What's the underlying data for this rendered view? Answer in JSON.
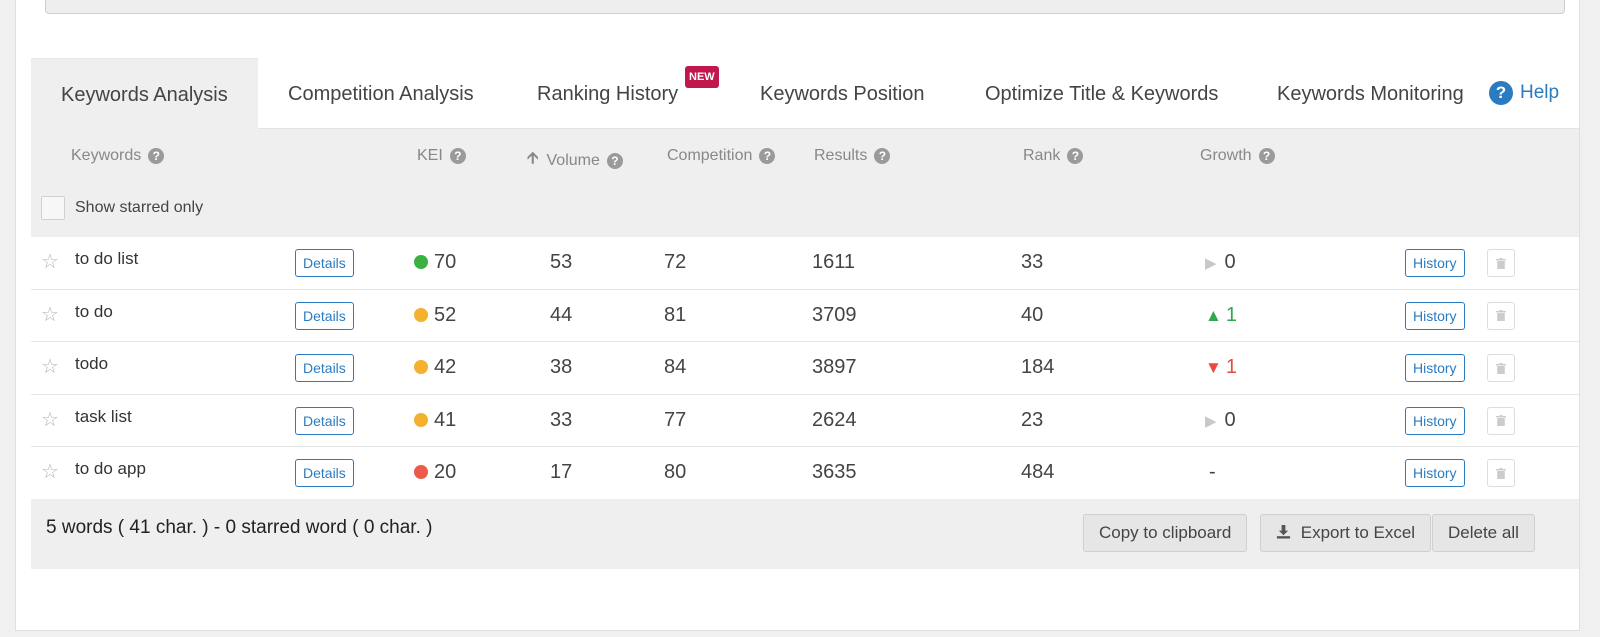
{
  "tabs": [
    {
      "label": "Keywords Analysis",
      "active": true
    },
    {
      "label": "Competition Analysis"
    },
    {
      "label": "Ranking History",
      "badge": "NEW"
    },
    {
      "label": "Keywords Position"
    },
    {
      "label": "Optimize Title & Keywords"
    },
    {
      "label": "Keywords Monitoring"
    }
  ],
  "help_label": "Help",
  "columns": {
    "keywords": "Keywords",
    "kei": "KEI",
    "volume": "Volume",
    "competition": "Competition",
    "results": "Results",
    "rank": "Rank",
    "growth": "Growth"
  },
  "show_starred_label": "Show starred only",
  "details_label": "Details",
  "history_label": "History",
  "rows": [
    {
      "keyword": "to do list",
      "kei": "70",
      "kei_color": "#3cb043",
      "volume": "53",
      "competition": "72",
      "results": "1611",
      "rank": "33",
      "growth": "0",
      "growth_dir": "flat"
    },
    {
      "keyword": "to do",
      "kei": "52",
      "kei_color": "#f5b02e",
      "volume": "44",
      "competition": "81",
      "results": "3709",
      "rank": "40",
      "growth": "1",
      "growth_dir": "up"
    },
    {
      "keyword": "todo",
      "kei": "42",
      "kei_color": "#f5b02e",
      "volume": "38",
      "competition": "84",
      "results": "3897",
      "rank": "184",
      "growth": "1",
      "growth_dir": "down"
    },
    {
      "keyword": "task list",
      "kei": "41",
      "kei_color": "#f5b02e",
      "volume": "33",
      "competition": "77",
      "results": "2624",
      "rank": "23",
      "growth": "0",
      "growth_dir": "flat"
    },
    {
      "keyword": "to do app",
      "kei": "20",
      "kei_color": "#ee5a4a",
      "volume": "17",
      "competition": "80",
      "results": "3635",
      "rank": "484",
      "growth": "-",
      "growth_dir": "none"
    }
  ],
  "footer": {
    "summary": "5 words ( 41 char. ) - 0 starred word ( 0 char. )",
    "copy_label": "Copy to clipboard",
    "export_label": "Export to Excel",
    "delete_label": "Delete all"
  },
  "colors": {
    "accent": "#2b7bc1",
    "badge": "#c0184c",
    "up": "#2fa84f",
    "down": "#e84b3c"
  }
}
